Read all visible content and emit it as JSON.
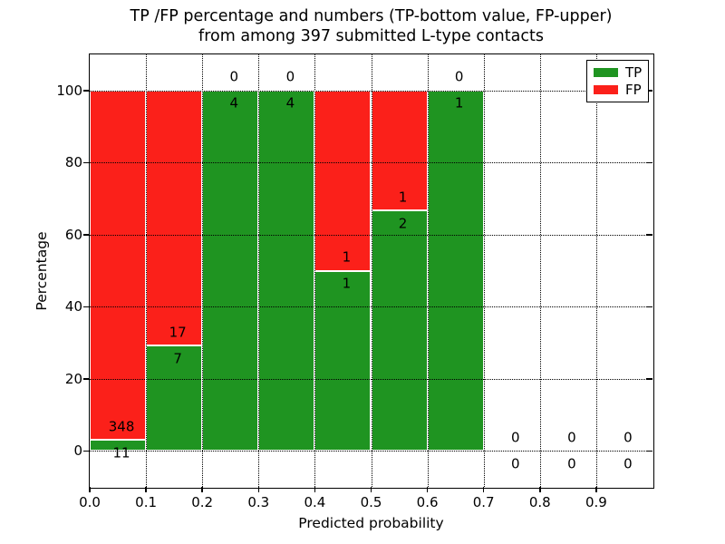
{
  "figure": {
    "background": "#ffffff"
  },
  "colors": {
    "tp": "#1f9421",
    "fp": "#fb201a",
    "text": "#000000",
    "grid": "#000000",
    "bar_edge": "#ffffff"
  },
  "chart_data": {
    "type": "bar",
    "stacked": true,
    "title_line1": "TP /FP percentage and numbers (TP-bottom value, FP-upper)",
    "title_line2": "from among 397 submitted L-type contacts",
    "xlabel": "Predicted probability",
    "ylabel": "Percentage",
    "xlim": [
      0,
      1
    ],
    "ylim": [
      -10,
      110
    ],
    "grid": true,
    "bin_edges": [
      0,
      0.1,
      0.2,
      0.3,
      0.4,
      0.5,
      0.6,
      0.7,
      0.8,
      0.9,
      1.0
    ],
    "categories": [
      "0.0-0.1",
      "0.1-0.2",
      "0.2-0.3",
      "0.3-0.4",
      "0.4-0.5",
      "0.5-0.6",
      "0.6-0.7",
      "0.7-0.8",
      "0.8-0.9",
      "0.9-1.0"
    ],
    "series": [
      {
        "name": "TP",
        "counts": [
          11,
          7,
          4,
          4,
          1,
          2,
          1,
          0,
          0,
          0
        ],
        "percent": [
          3.06,
          29.17,
          100,
          100,
          50,
          66.67,
          100,
          0,
          0,
          0
        ]
      },
      {
        "name": "FP",
        "counts": [
          348,
          17,
          0,
          0,
          1,
          1,
          0,
          0,
          0,
          0
        ],
        "percent": [
          96.94,
          70.83,
          0,
          0,
          50,
          33.33,
          0,
          0,
          0,
          0
        ]
      }
    ],
    "xtick_values": [
      0,
      0.1,
      0.2,
      0.3,
      0.4,
      0.5,
      0.6,
      0.7,
      0.8,
      0.9
    ],
    "xtick_labels": [
      "0.0",
      "0.1",
      "0.2",
      "0.3",
      "0.4",
      "0.5",
      "0.6",
      "0.7",
      "0.8",
      "0.9"
    ],
    "ytick_values": [
      0,
      20,
      40,
      60,
      80,
      100
    ],
    "ytick_labels": [
      "0",
      "20",
      "40",
      "60",
      "80",
      "100"
    ],
    "legend": {
      "position": "upper right",
      "entries": [
        {
          "label": "TP",
          "color": "#1f9421"
        },
        {
          "label": "FP",
          "color": "#fb201a"
        }
      ]
    }
  }
}
